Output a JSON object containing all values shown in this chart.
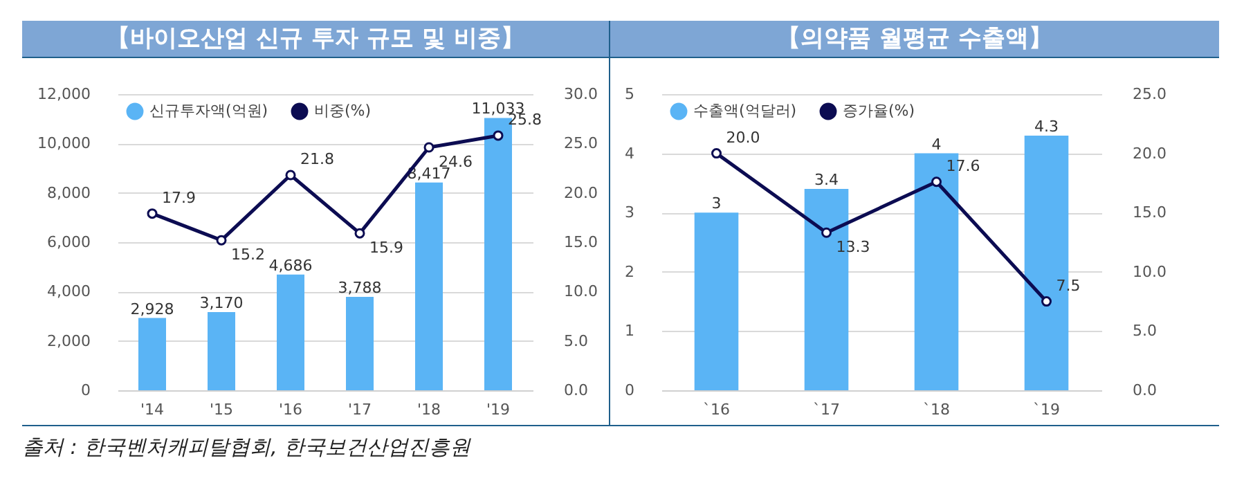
{
  "chart_data": [
    {
      "type": "bar",
      "title": "【바이오산업 신규 투자 규모 및 비중】",
      "categories": [
        "'14",
        "'15",
        "'16",
        "'17",
        "'18",
        "'19"
      ],
      "series": [
        {
          "name": "신규투자액(억원)",
          "color": "#5ab4f5",
          "values": [
            2928,
            3170,
            4686,
            3788,
            8417,
            11033
          ],
          "value_labels": [
            "2,928",
            "3,170",
            "4,686",
            "3,788",
            "8,417",
            "11,033"
          ]
        },
        {
          "name": "비중(%)",
          "type": "line",
          "axis": "y2",
          "color": "#0c0c52",
          "values": [
            17.9,
            15.2,
            21.8,
            15.9,
            24.6,
            25.8
          ],
          "value_labels": [
            "17.9",
            "15.2",
            "21.8",
            "15.9",
            "24.6",
            "25.8"
          ]
        }
      ],
      "ylim": [
        0,
        12000
      ],
      "yticks": [
        {
          "value": 0,
          "label": "0"
        },
        {
          "value": 2000,
          "label": "2,000"
        },
        {
          "value": 4000,
          "label": "4,000"
        },
        {
          "value": 6000,
          "label": "6,000"
        },
        {
          "value": 8000,
          "label": "8,000"
        },
        {
          "value": 10000,
          "label": "10,000"
        },
        {
          "value": 12000,
          "label": "12,000"
        }
      ],
      "y2lim": [
        0,
        30
      ],
      "y2ticks": [
        {
          "value": 0,
          "label": "0.0"
        },
        {
          "value": 5,
          "label": "5.0"
        },
        {
          "value": 10,
          "label": "10.0"
        },
        {
          "value": 15,
          "label": "15.0"
        },
        {
          "value": 20,
          "label": "20.0"
        },
        {
          "value": 25,
          "label": "25.0"
        },
        {
          "value": 30,
          "label": "30.0"
        }
      ],
      "grid": "y",
      "legend": "top left",
      "marker": "circle",
      "annotations": [
        "출처 : 한국벤처캐피탈협회, 한국보건산업진흥원"
      ]
    },
    {
      "type": "bar",
      "title": "【의약품 월평균 수출액】",
      "categories": [
        "`16",
        "`17",
        "`18",
        "`19"
      ],
      "series": [
        {
          "name": "수출액(억달러)",
          "color": "#5ab4f5",
          "values": [
            3,
            3.4,
            4,
            4.3
          ],
          "value_labels": [
            "3",
            "3.4",
            "4",
            "4.3"
          ]
        },
        {
          "name": "증가율(%)",
          "type": "line",
          "axis": "y2",
          "color": "#0c0c52",
          "values": [
            20.0,
            13.3,
            17.6,
            7.5
          ],
          "value_labels": [
            "20.0",
            "13.3",
            "17.6",
            "7.5"
          ]
        }
      ],
      "ylim": [
        0,
        5
      ],
      "yticks": [
        0,
        1,
        2,
        3,
        4,
        5
      ],
      "y2lim": [
        0,
        25
      ],
      "y2ticks": [
        {
          "value": 0,
          "label": "0.0"
        },
        {
          "value": 5,
          "label": "5.0"
        },
        {
          "value": 10,
          "label": "10.0"
        },
        {
          "value": 15,
          "label": "15.0"
        },
        {
          "value": 20,
          "label": "20.0"
        },
        {
          "value": 25,
          "label": "25.0"
        }
      ],
      "grid": "y",
      "legend": "top left",
      "marker": "circle"
    }
  ]
}
